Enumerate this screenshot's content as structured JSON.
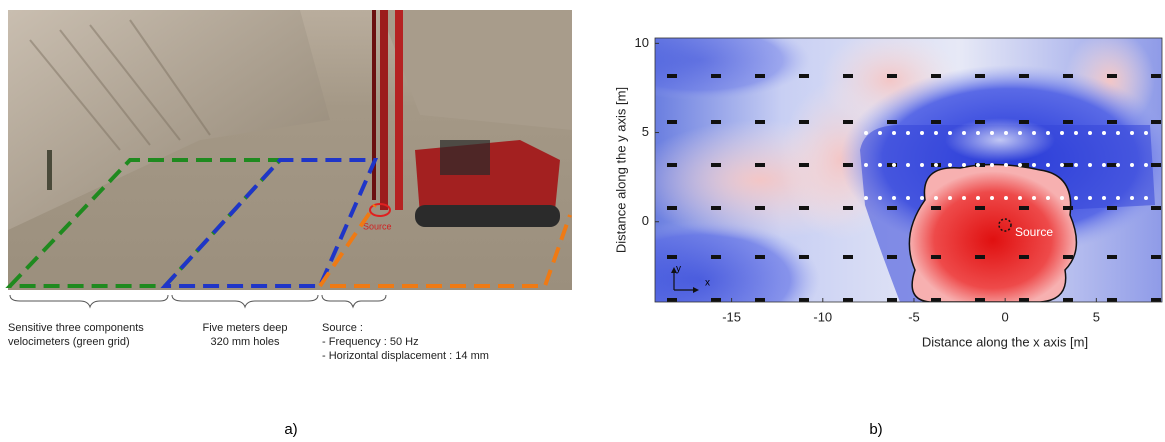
{
  "panel_a": {
    "label": "a)",
    "source_marker": "Source",
    "captions": [
      [
        "Sensitive three components",
        "velocimeters (green grid)"
      ],
      [
        "Five meters deep",
        "320 mm holes"
      ],
      [
        "Source :",
        "- Frequency : 50 Hz",
        "- Horizontal displacement : 14 mm"
      ]
    ]
  },
  "panel_b": {
    "label": "b)",
    "xlabel": "Distance along the x axis [m]",
    "ylabel": "Distance along the y axis [m]",
    "xlim": [
      -19.2,
      8.6
    ],
    "ylim": [
      -4.5,
      10.3
    ],
    "xticks": [
      -15,
      -10,
      -5,
      0,
      5
    ],
    "yticks": [
      0,
      5,
      10
    ],
    "source_label": "Source",
    "arrow_x": "x",
    "arrow_y": "y"
  }
}
